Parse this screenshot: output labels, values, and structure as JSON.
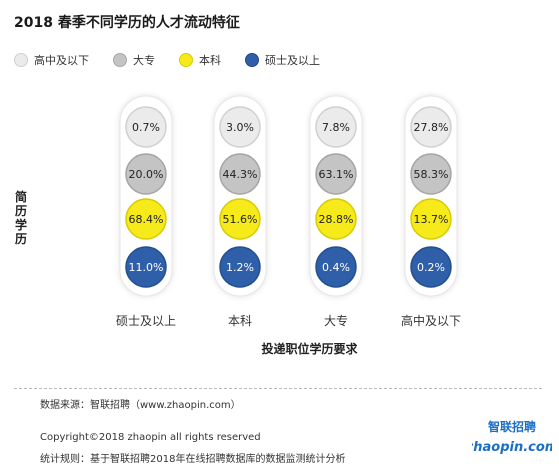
{
  "chart_data": {
    "type": "bubble-matrix",
    "title": "2018 春季不同学历的人才流动特征",
    "xlabel": "投递职位学历要求",
    "ylabel": "简历学历",
    "legend_placement": "top",
    "categories": [
      "硕士及以上",
      "本科",
      "大专",
      "高中及以下"
    ],
    "series": [
      {
        "name": "高中及以下",
        "color": "#ebebeb",
        "values": [
          0.7,
          3.0,
          7.8,
          27.8
        ],
        "labels": [
          "0.7%",
          "3.0%",
          "7.8%",
          "27.8%"
        ]
      },
      {
        "name": "大专",
        "color": "#c4c4c4",
        "values": [
          20.0,
          44.3,
          63.1,
          58.3
        ],
        "labels": [
          "20.0%",
          "44.3%",
          "63.1%",
          "58.3%"
        ]
      },
      {
        "name": "本科",
        "color": "#f7ea1a",
        "values": [
          68.4,
          51.6,
          28.8,
          13.7
        ],
        "labels": [
          "68.4%",
          "51.6%",
          "28.8%",
          "13.7%"
        ]
      },
      {
        "name": "硕士及以上",
        "color": "#2f5fa8",
        "values": [
          11.0,
          1.2,
          0.4,
          0.2
        ],
        "labels": [
          "11.0%",
          "1.2%",
          "0.4%",
          "0.2%"
        ]
      }
    ]
  },
  "footer": {
    "source": "数据来源：智联招聘（www.zhaopin.com）",
    "copyright": "Copyright©2018 zhaopin all rights reserved",
    "stats": "统计规则：基于智联招聘2018年在线招聘数据库的数据监测统计分析"
  },
  "logo": {
    "brand": "zhaopin.com",
    "brand_cn": "智联招聘",
    "color_blue": "#1a6fc4",
    "color_orange": "#f29b1c"
  }
}
